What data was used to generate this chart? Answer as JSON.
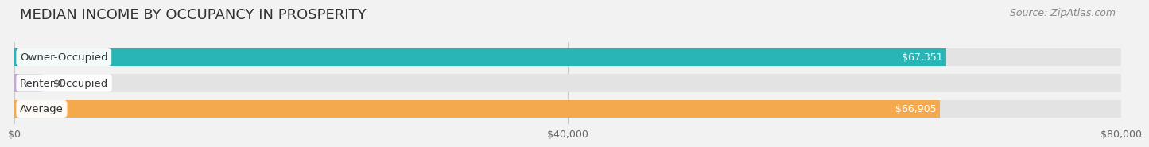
{
  "title": "MEDIAN INCOME BY OCCUPANCY IN PROSPERITY",
  "source": "Source: ZipAtlas.com",
  "categories": [
    "Owner-Occupied",
    "Renter-Occupied",
    "Average"
  ],
  "values": [
    67351,
    0,
    66905
  ],
  "bar_colors": [
    "#29b5b5",
    "#c4a8d4",
    "#f5a94e"
  ],
  "value_labels": [
    "$67,351",
    "$0",
    "$66,905"
  ],
  "xlim": [
    0,
    80000
  ],
  "xticks": [
    0,
    40000,
    80000
  ],
  "xtick_labels": [
    "$0",
    "$40,000",
    "$80,000"
  ],
  "background_color": "#f2f2f2",
  "bar_background_color": "#e3e3e3",
  "title_fontsize": 13,
  "source_fontsize": 9,
  "label_fontsize": 9.5,
  "value_fontsize": 9
}
